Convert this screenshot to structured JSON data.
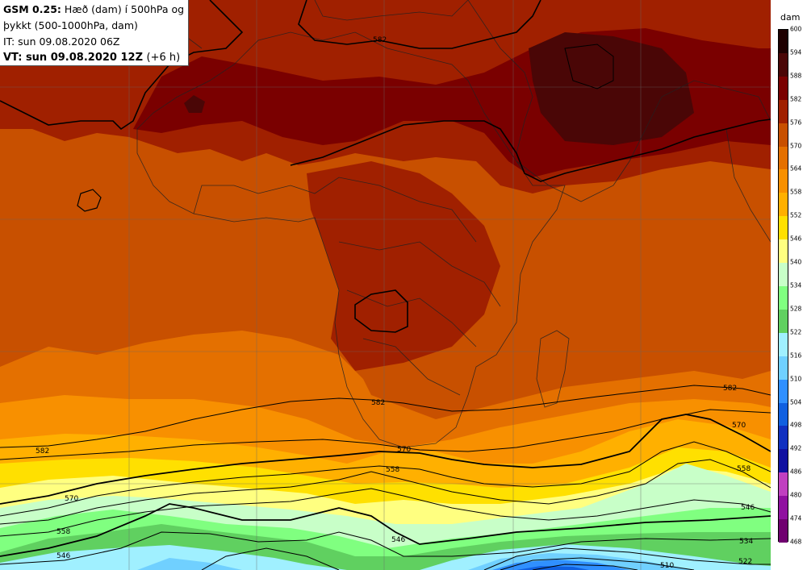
{
  "info": {
    "model": "GSM 0.25:",
    "desc1": "Hæð (dam) í 500hPa og",
    "desc2": "þykkt (500-1000hPa, dam)",
    "it": "IT: sun 09.08.2020 06Z",
    "vt": "VT: sun 09.08.2020 12Z",
    "vt_offset": "(+6 h)"
  },
  "colorbar": {
    "unit": "dam",
    "levels": [
      "600",
      "594",
      "588",
      "582",
      "576",
      "570",
      "564",
      "558",
      "552",
      "546",
      "540",
      "534",
      "528",
      "522",
      "516",
      "510",
      "504",
      "498",
      "492",
      "486",
      "480",
      "474",
      "468"
    ],
    "colors": [
      "#1e0000",
      "#4a0606",
      "#7a0000",
      "#a02000",
      "#c85000",
      "#e47000",
      "#f89000",
      "#ffb000",
      "#ffe000",
      "#ffff80",
      "#c8ffc8",
      "#80ff80",
      "#60d060",
      "#a0f0ff",
      "#70d0ff",
      "#3090ff",
      "#1060e0",
      "#1030c0",
      "#1010a0",
      "#c040c0",
      "#9010a0",
      "#700070",
      "#500050"
    ]
  },
  "contour_labels": [
    {
      "text": "582"
    },
    {
      "text": "582"
    },
    {
      "text": "582"
    },
    {
      "text": "582"
    },
    {
      "text": "570"
    },
    {
      "text": "570"
    },
    {
      "text": "570"
    },
    {
      "text": "558"
    },
    {
      "text": "558"
    },
    {
      "text": "558"
    },
    {
      "text": "546"
    },
    {
      "text": "546"
    },
    {
      "text": "546"
    },
    {
      "text": "534"
    },
    {
      "text": "522"
    },
    {
      "text": "510"
    }
  ]
}
